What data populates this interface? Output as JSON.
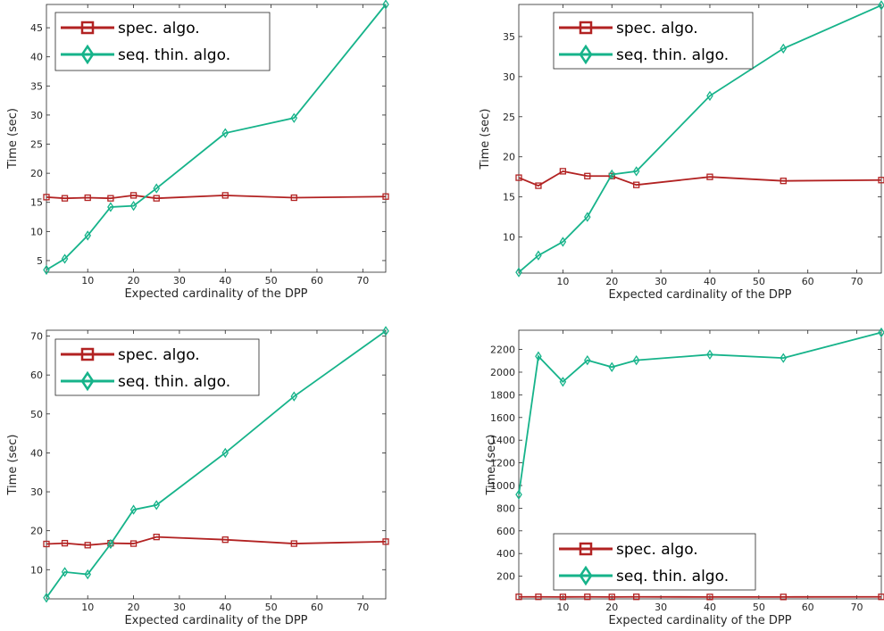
{
  "chart_data": [
    {
      "type": "line",
      "xlabel": "Expected cardinality of the DPP",
      "ylabel": "Time (sec)",
      "xlim": [
        1,
        75
      ],
      "ylim": [
        3,
        49
      ],
      "xticks": [
        10,
        20,
        30,
        40,
        50,
        60,
        70
      ],
      "yticks": [
        5,
        10,
        15,
        20,
        25,
        30,
        35,
        40,
        45
      ],
      "legend_position": "top-left",
      "x": [
        1,
        5,
        10,
        15,
        20,
        25,
        40,
        55,
        75
      ],
      "series": [
        {
          "name": "spec. algo.",
          "marker": "square",
          "color": "#b22222",
          "values": [
            15.9,
            15.7,
            15.8,
            15.7,
            16.2,
            15.7,
            16.2,
            15.8,
            16.0
          ]
        },
        {
          "name": "seq. thin. algo.",
          "marker": "diamond",
          "color": "#16b38a",
          "values": [
            3.4,
            5.3,
            9.3,
            14.2,
            14.4,
            17.4,
            26.9,
            29.5,
            49.0
          ]
        }
      ]
    },
    {
      "type": "line",
      "xlabel": "Expected cardinality of the DPP",
      "ylabel": "Time (sec)",
      "xlim": [
        1,
        75
      ],
      "ylim": [
        5.5,
        39
      ],
      "xticks": [
        10,
        20,
        30,
        40,
        50,
        60,
        70
      ],
      "yticks": [
        10,
        15,
        20,
        25,
        30,
        35
      ],
      "legend_position": "top-left",
      "x": [
        1,
        5,
        10,
        15,
        20,
        25,
        40,
        55,
        75
      ],
      "series": [
        {
          "name": "spec. algo.",
          "marker": "square",
          "color": "#b22222",
          "values": [
            17.4,
            16.4,
            18.2,
            17.6,
            17.6,
            16.5,
            17.5,
            17.0,
            17.1
          ]
        },
        {
          "name": "seq. thin. algo.",
          "marker": "diamond",
          "color": "#16b38a",
          "values": [
            5.6,
            7.7,
            9.4,
            12.5,
            17.8,
            18.2,
            27.6,
            33.5,
            38.9
          ]
        }
      ]
    },
    {
      "type": "line",
      "xlabel": "Expected cardinality of the DPP",
      "ylabel": "Time (sec)",
      "xlim": [
        1,
        75
      ],
      "ylim": [
        2.5,
        71.5
      ],
      "xticks": [
        10,
        20,
        30,
        40,
        50,
        60,
        70
      ],
      "yticks": [
        10,
        20,
        30,
        40,
        50,
        60,
        70
      ],
      "legend_position": "top-left",
      "x": [
        1,
        5,
        10,
        15,
        20,
        25,
        40,
        55,
        75
      ],
      "series": [
        {
          "name": "spec. algo.",
          "marker": "square",
          "color": "#b22222",
          "values": [
            16.6,
            16.8,
            16.3,
            16.8,
            16.7,
            18.4,
            17.7,
            16.7,
            17.2
          ]
        },
        {
          "name": "seq. thin. algo.",
          "marker": "diamond",
          "color": "#16b38a",
          "values": [
            2.8,
            9.4,
            8.8,
            16.6,
            25.4,
            26.6,
            40.0,
            54.5,
            71.3
          ]
        }
      ]
    },
    {
      "type": "line",
      "xlabel": "Expected cardinality of the DPP",
      "ylabel": "Time (sec)",
      "xlim": [
        1,
        75
      ],
      "ylim": [
        0,
        2370
      ],
      "xticks": [
        10,
        20,
        30,
        40,
        50,
        60,
        70
      ],
      "yticks": [
        200,
        400,
        600,
        800,
        1000,
        1200,
        1400,
        1600,
        1800,
        2000,
        2200
      ],
      "legend_position": "bottom-left",
      "x": [
        1,
        5,
        10,
        15,
        20,
        25,
        40,
        55,
        75
      ],
      "series": [
        {
          "name": "spec. algo.",
          "marker": "square",
          "color": "#b22222",
          "values": [
            18,
            18,
            17,
            18,
            17,
            18,
            17,
            17,
            18
          ]
        },
        {
          "name": "seq. thin. algo.",
          "marker": "diamond",
          "color": "#16b38a",
          "values": [
            920,
            2140,
            1915,
            2105,
            2045,
            2105,
            2155,
            2125,
            2350
          ]
        }
      ]
    }
  ]
}
